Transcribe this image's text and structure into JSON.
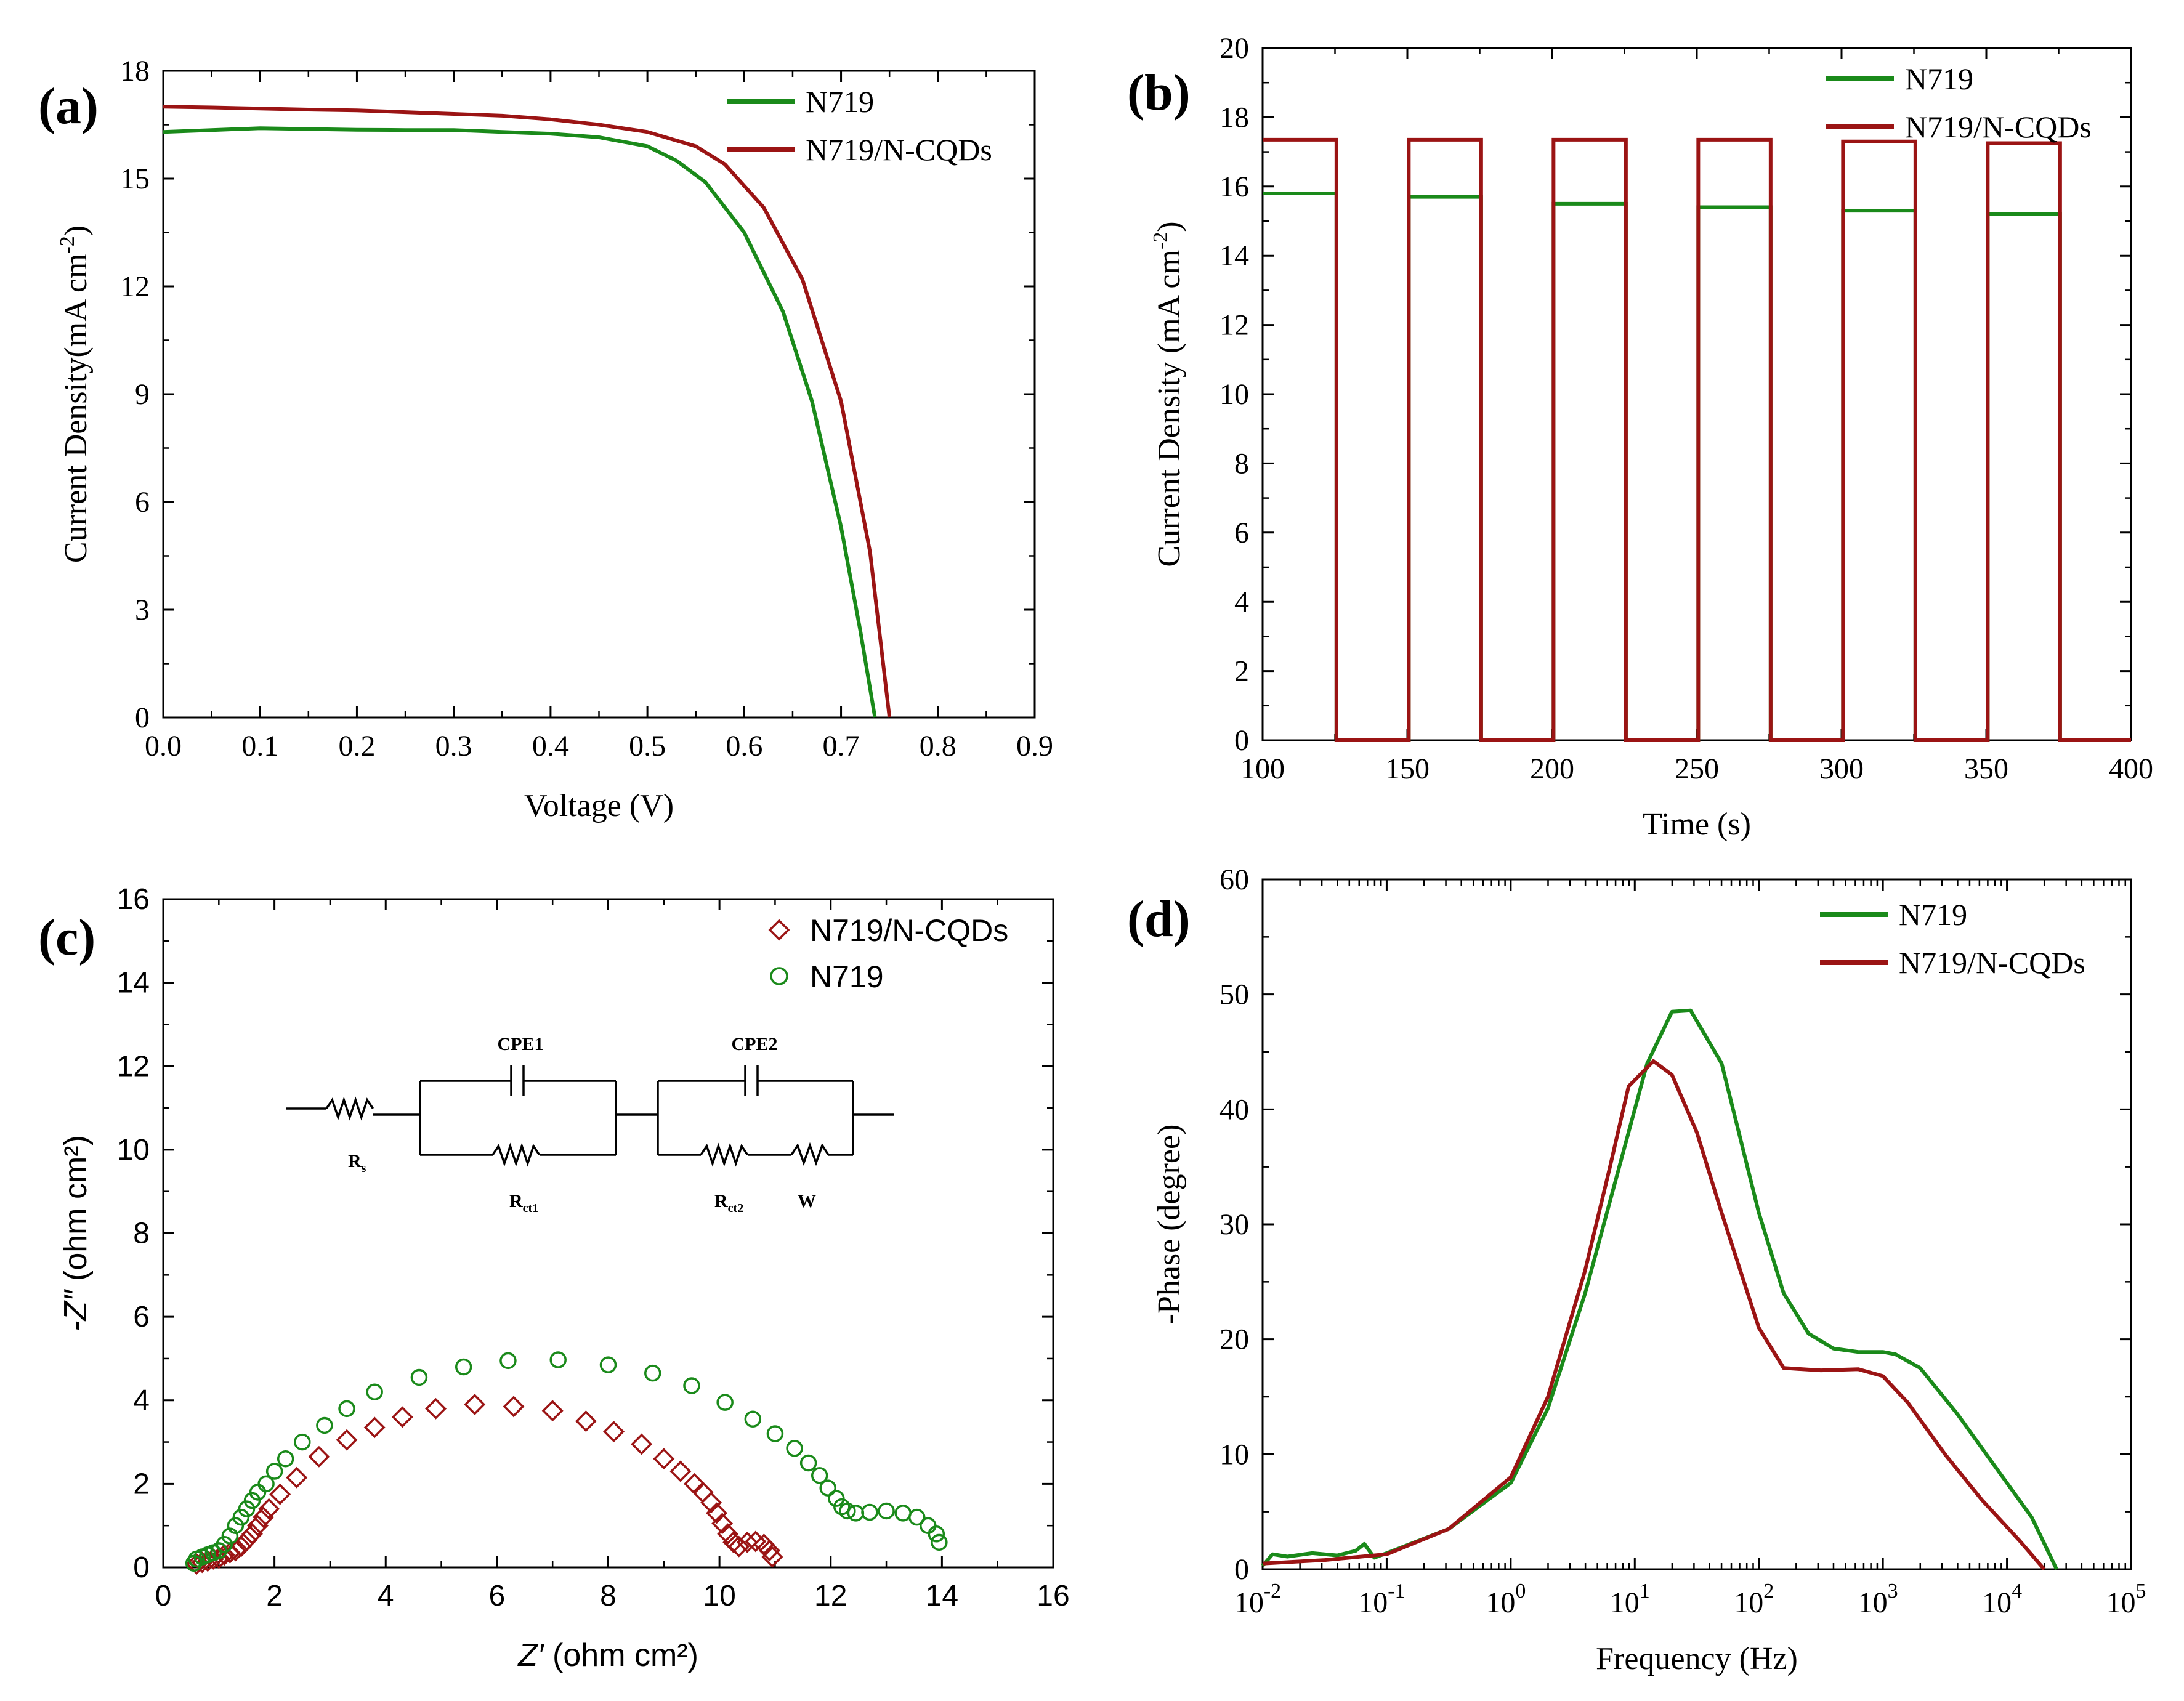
{
  "colors": {
    "n719": "#1a8a1a",
    "ncqd": "#9b1414",
    "axis": "#000000"
  },
  "chart_data": [
    {
      "id": "a",
      "panel_label": "(a)",
      "type": "line",
      "xlabel": "Voltage (V)",
      "ylabel": "Current Density(mA cm",
      "ylabel_sup": "-2",
      "ylabel_close": ")",
      "xlim": [
        0,
        0.9
      ],
      "ylim": [
        0,
        18
      ],
      "xticks": [
        0,
        0.1,
        0.2,
        0.3,
        0.4,
        0.5,
        0.6,
        0.7,
        0.8,
        0.9
      ],
      "xtick_labels": [
        "0.0",
        "0.1",
        "0.2",
        "0.3",
        "0.4",
        "0.5",
        "0.6",
        "0.7",
        "0.8",
        "0.9"
      ],
      "yticks": [
        0,
        3,
        6,
        9,
        12,
        15,
        18
      ],
      "ytick_labels": [
        "0",
        "3",
        "6",
        "9",
        "12",
        "15",
        "18"
      ],
      "legend": [
        "N719",
        "N719/N-CQDs"
      ],
      "series": [
        {
          "name": "N719",
          "color": "#1a8a1a",
          "x": [
            0,
            0.05,
            0.1,
            0.15,
            0.2,
            0.25,
            0.3,
            0.35,
            0.4,
            0.45,
            0.5,
            0.53,
            0.56,
            0.6,
            0.64,
            0.67,
            0.7,
            0.72,
            0.735
          ],
          "y": [
            16.3,
            16.35,
            16.4,
            16.38,
            16.36,
            16.35,
            16.35,
            16.3,
            16.25,
            16.15,
            15.9,
            15.5,
            14.9,
            13.5,
            11.3,
            8.8,
            5.3,
            2.4,
            0
          ]
        },
        {
          "name": "N719/N-CQDs",
          "color": "#9b1414",
          "x": [
            0,
            0.05,
            0.1,
            0.15,
            0.2,
            0.25,
            0.3,
            0.35,
            0.4,
            0.45,
            0.5,
            0.55,
            0.58,
            0.62,
            0.66,
            0.7,
            0.73,
            0.75
          ],
          "y": [
            17.0,
            16.98,
            16.95,
            16.92,
            16.9,
            16.85,
            16.8,
            16.75,
            16.65,
            16.5,
            16.3,
            15.9,
            15.4,
            14.2,
            12.2,
            8.8,
            4.6,
            0
          ]
        }
      ]
    },
    {
      "id": "b",
      "panel_label": "(b)",
      "type": "line",
      "xlabel": "Time (s)",
      "ylabel": "Current Density (mA cm",
      "ylabel_sup": "-2",
      "ylabel_close": ")",
      "xlim": [
        100,
        400
      ],
      "ylim": [
        0,
        20
      ],
      "xticks": [
        100,
        150,
        200,
        250,
        300,
        350,
        400
      ],
      "xtick_labels": [
        "100",
        "150",
        "200",
        "250",
        "300",
        "350",
        "400"
      ],
      "yticks": [
        0,
        2,
        4,
        6,
        8,
        10,
        12,
        14,
        16,
        18,
        20
      ],
      "ytick_labels": [
        "0",
        "2",
        "4",
        "6",
        "8",
        "10",
        "12",
        "14",
        "16",
        "18",
        "20"
      ],
      "legend": [
        "N719",
        "N719/N-CQDs"
      ],
      "on_intervals": [
        [
          100,
          125.5
        ],
        [
          150.5,
          175.5
        ],
        [
          200.5,
          225.5
        ],
        [
          250.5,
          275.5
        ],
        [
          300.5,
          325.5
        ],
        [
          350.5,
          375.5
        ]
      ],
      "series": [
        {
          "name": "N719",
          "color": "#1a8a1a",
          "on_values": [
            15.8,
            15.7,
            15.5,
            15.4,
            15.3,
            15.2
          ]
        },
        {
          "name": "N719/N-CQDs",
          "color": "#9b1414",
          "on_values": [
            17.35,
            17.35,
            17.35,
            17.35,
            17.3,
            17.25
          ]
        }
      ]
    },
    {
      "id": "c",
      "panel_label": "(c)",
      "type": "scatter",
      "xlabel_italic": "Z′",
      "xlabel": " (ohm cm²)",
      "ylabel_italic": "-Z″",
      "ylabel": " (ohm cm²)",
      "xlim": [
        0,
        16
      ],
      "ylim": [
        0,
        16
      ],
      "xticks": [
        0,
        2,
        4,
        6,
        8,
        10,
        12,
        14,
        16
      ],
      "xtick_labels": [
        "0",
        "2",
        "4",
        "6",
        "8",
        "10",
        "12",
        "14",
        "16"
      ],
      "yticks": [
        0,
        2,
        4,
        6,
        8,
        10,
        12,
        14,
        16
      ],
      "ytick_labels": [
        "0",
        "2",
        "4",
        "6",
        "8",
        "10",
        "12",
        "14",
        "16"
      ],
      "legend": [
        "N719/N-CQDs",
        "N719"
      ],
      "circuit_labels": {
        "cpe1": "CPE1",
        "cpe2": "CPE2",
        "rs": "R",
        "rs_sub": "s",
        "rct1": "R",
        "rct1_sub": "ct1",
        "rct2": "R",
        "rct2_sub": "ct2",
        "w": "W"
      },
      "series": [
        {
          "name": "N719/N-CQDs",
          "marker": "diamond",
          "color": "#9b1414",
          "x": [
            0.6,
            0.7,
            0.8,
            0.9,
            1.0,
            1.1,
            1.2,
            1.3,
            1.4,
            1.5,
            1.6,
            1.7,
            1.8,
            1.9,
            2.1,
            2.4,
            2.8,
            3.3,
            3.8,
            4.3,
            4.9,
            5.6,
            6.3,
            7.0,
            7.6,
            8.1,
            8.6,
            9.0,
            9.3,
            9.55,
            9.7,
            9.85,
            9.95,
            10.05,
            10.15,
            10.25,
            10.35,
            10.5,
            10.65,
            10.8,
            10.9,
            10.95
          ],
          "y": [
            0.08,
            0.12,
            0.15,
            0.2,
            0.22,
            0.3,
            0.35,
            0.4,
            0.5,
            0.65,
            0.8,
            1.0,
            1.2,
            1.4,
            1.75,
            2.15,
            2.65,
            3.05,
            3.35,
            3.6,
            3.8,
            3.9,
            3.85,
            3.75,
            3.5,
            3.25,
            2.95,
            2.6,
            2.3,
            2.0,
            1.8,
            1.55,
            1.3,
            1.05,
            0.8,
            0.6,
            0.5,
            0.6,
            0.62,
            0.55,
            0.4,
            0.25
          ]
        },
        {
          "name": "N719",
          "marker": "circle",
          "color": "#1a8a1a",
          "x": [
            0.55,
            0.6,
            0.7,
            0.8,
            0.9,
            1.0,
            1.1,
            1.2,
            1.3,
            1.4,
            1.5,
            1.6,
            1.7,
            1.85,
            2.0,
            2.2,
            2.5,
            2.9,
            3.3,
            3.8,
            4.6,
            5.4,
            6.2,
            7.1,
            8.0,
            8.8,
            9.5,
            10.1,
            10.6,
            11.0,
            11.35,
            11.6,
            11.8,
            11.95,
            12.1,
            12.2,
            12.3,
            12.45,
            12.7,
            13.0,
            13.3,
            13.55,
            13.75,
            13.9,
            13.95
          ],
          "y": [
            0.1,
            0.2,
            0.25,
            0.3,
            0.35,
            0.4,
            0.55,
            0.75,
            1.0,
            1.2,
            1.4,
            1.6,
            1.8,
            2.0,
            2.3,
            2.6,
            3.0,
            3.4,
            3.8,
            4.2,
            4.55,
            4.8,
            4.95,
            4.97,
            4.85,
            4.65,
            4.35,
            3.95,
            3.55,
            3.2,
            2.85,
            2.5,
            2.2,
            1.9,
            1.65,
            1.45,
            1.35,
            1.3,
            1.32,
            1.35,
            1.3,
            1.2,
            1.0,
            0.8,
            0.6
          ]
        }
      ]
    },
    {
      "id": "d",
      "panel_label": "(d)",
      "type": "line",
      "xscale": "log",
      "xlabel": "Frequency (Hz)",
      "ylabel": "-Phase (degree)",
      "xlim_log10": [
        -2,
        5
      ],
      "ylim": [
        0,
        60
      ],
      "xtick_exponents": [
        -2,
        -1,
        0,
        1,
        2,
        3,
        4,
        5
      ],
      "xtick_base": "10",
      "yticks": [
        0,
        10,
        20,
        30,
        40,
        50,
        60
      ],
      "ytick_labels": [
        "0",
        "10",
        "20",
        "30",
        "40",
        "50",
        "60"
      ],
      "legend": [
        "N719",
        "N719/N-CQDs"
      ],
      "series": [
        {
          "name": "N719",
          "color": "#1a8a1a",
          "log10x": [
            -2,
            -1.92,
            -1.8,
            -1.6,
            -1.4,
            -1.25,
            -1.18,
            -1.1,
            -1.0,
            -0.5,
            0,
            0.3,
            0.6,
            0.9,
            1.1,
            1.3,
            1.45,
            1.7,
            2.0,
            2.2,
            2.4,
            2.6,
            2.8,
            3.0,
            3.1,
            3.3,
            3.6,
            3.9,
            4.2,
            4.4
          ],
          "y": [
            0.3,
            1.3,
            1.1,
            1.4,
            1.2,
            1.6,
            2.2,
            1.0,
            1.4,
            3.5,
            7.5,
            14,
            24,
            36,
            44,
            48.5,
            48.6,
            44,
            31,
            24,
            20.5,
            19.2,
            18.9,
            18.9,
            18.7,
            17.5,
            13.5,
            9,
            4.5,
            0
          ]
        },
        {
          "name": "N719/N-CQDs",
          "color": "#9b1414",
          "log10x": [
            -2,
            -1.5,
            -1.0,
            -0.5,
            0,
            0.3,
            0.6,
            0.8,
            0.95,
            1.15,
            1.3,
            1.5,
            1.7,
            2.0,
            2.2,
            2.5,
            2.8,
            3.0,
            3.2,
            3.5,
            3.8,
            4.1,
            4.3
          ],
          "y": [
            0.5,
            0.8,
            1.3,
            3.5,
            8,
            15,
            26,
            35,
            42,
            44.2,
            43,
            38,
            31,
            21,
            17.5,
            17.3,
            17.4,
            16.8,
            14.5,
            10,
            6,
            2.5,
            0
          ]
        }
      ]
    }
  ]
}
